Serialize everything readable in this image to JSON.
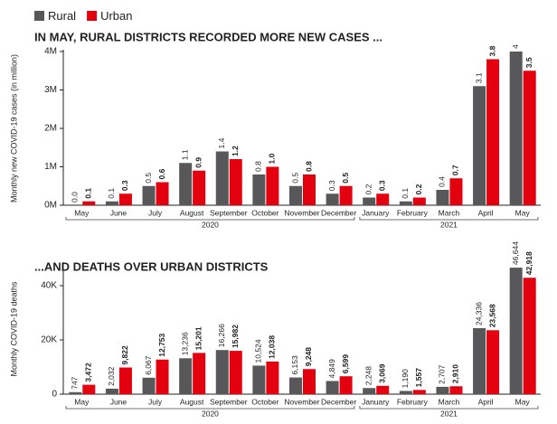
{
  "chart_data": [
    {
      "type": "bar",
      "title": "IN MAY, RURAL DISTRICTS RECORDED MORE NEW CASES ...",
      "y_label": "Monthly new COVID-19 cases (in million)",
      "categories": [
        "May",
        "June",
        "July",
        "August",
        "September",
        "October",
        "November",
        "December",
        "January",
        "February",
        "March",
        "April",
        "May"
      ],
      "groups": [
        {
          "label": "2020",
          "span": 8
        },
        {
          "label": "2021",
          "span": 5
        }
      ],
      "series": [
        {
          "name": "Rural",
          "color": "#58585a",
          "values": [
            0,
            0.1,
            0.5,
            1.1,
            1.4,
            0.8,
            0.5,
            0.3,
            0.2,
            0.1,
            0.4,
            3.1,
            4
          ],
          "value_labels": [
            "0.0",
            "0.1",
            "0.5",
            "1.1",
            "1.4",
            "0.8",
            "0.5",
            "0.3",
            "0.2",
            "0.1",
            "0.4",
            "3.1",
            "4"
          ]
        },
        {
          "name": "Urban",
          "color": "#e3000f",
          "values": [
            0.1,
            0.3,
            0.6,
            0.9,
            1.2,
            1.0,
            0.8,
            0.5,
            0.3,
            0.2,
            0.7,
            3.8,
            3.5
          ],
          "value_labels": [
            "0.1",
            "0.3",
            "0.6",
            "0.9",
            "1.2",
            "1.0",
            "0.8",
            "0.5",
            "0.3",
            "0.2",
            "0.7",
            "3.8",
            "3.5"
          ]
        }
      ],
      "ylim": [
        0,
        4
      ],
      "yticks": [
        {
          "value": 0,
          "label": "0M"
        },
        {
          "value": 1,
          "label": "1M"
        },
        {
          "value": 2,
          "label": "2M"
        },
        {
          "value": 3,
          "label": "3M"
        },
        {
          "value": 4,
          "label": "4M"
        }
      ],
      "legend": "top-left"
    },
    {
      "type": "bar",
      "title": "...AND DEATHS OVER URBAN DISTRICTS",
      "y_label": "Monthly COVID-19 deaths",
      "categories": [
        "May",
        "June",
        "July",
        "August",
        "September",
        "October",
        "November",
        "December",
        "January",
        "February",
        "March",
        "April",
        "May"
      ],
      "groups": [
        {
          "label": "2020",
          "span": 8
        },
        {
          "label": "2021",
          "span": 5
        }
      ],
      "series": [
        {
          "color": "#58585a",
          "values": [
            747,
            2032,
            6067,
            13236,
            16266,
            10524,
            6153,
            4849,
            2248,
            1190,
            2707,
            24336,
            46644
          ],
          "value_labels": [
            "747",
            "2,032",
            "6,067",
            "13,236",
            "16,266",
            "10,524",
            "6,153",
            "4,849",
            "2,248",
            "1,190",
            "2,707",
            "24,336",
            "46,644"
          ]
        },
        {
          "color": "#e3000f",
          "values": [
            3472,
            9822,
            12753,
            15201,
            15982,
            12038,
            9248,
            6599,
            3069,
            1557,
            2910,
            23568,
            42918
          ],
          "value_labels": [
            "3,472",
            "9,822",
            "12,753",
            "15,201",
            "15,982",
            "12,038",
            "9,248",
            "6,599",
            "3,069",
            "1,557",
            "2,910",
            "23,568",
            "42,918"
          ]
        }
      ],
      "ylim": [
        0,
        48000
      ],
      "yticks": [
        {
          "value": 0,
          "label": "0"
        },
        {
          "value": 20000,
          "label": "20K"
        },
        {
          "value": 40000,
          "label": "40K"
        }
      ]
    }
  ]
}
